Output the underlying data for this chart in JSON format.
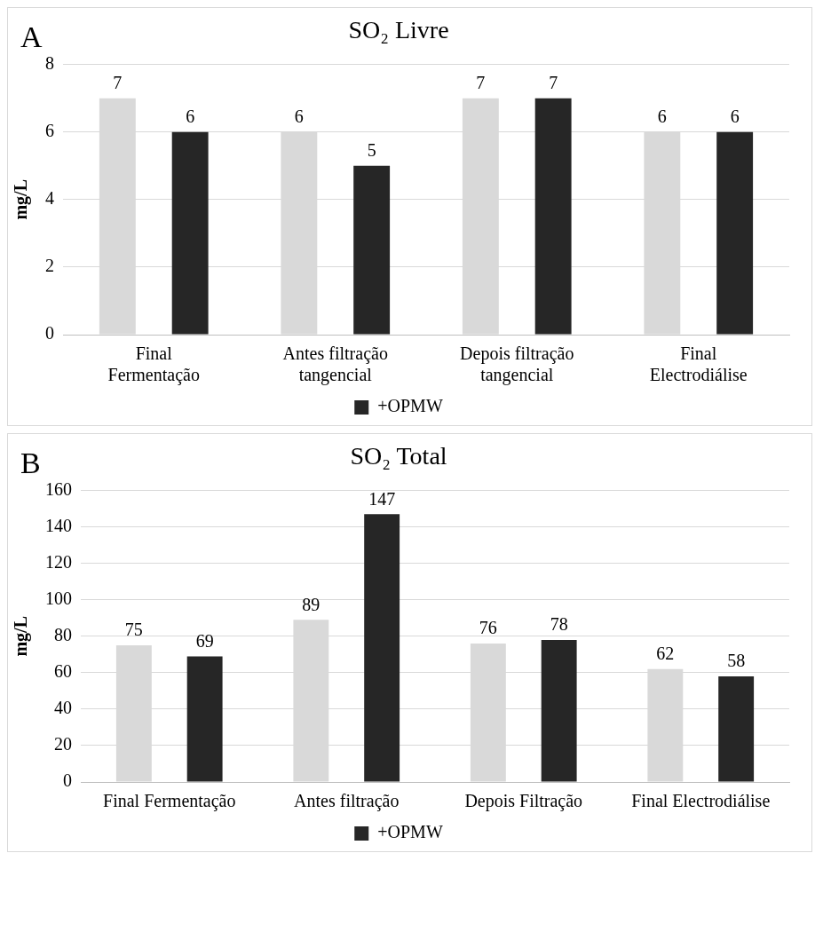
{
  "chart_data": [
    {
      "type": "bar",
      "title": "SO₂ Livre",
      "ylabel": "mg/L",
      "annotations": [
        "A"
      ],
      "categories": [
        "Final Fermentação",
        "Antes filtração tangencial",
        "Depois filtração tangencial",
        "Final Electrodiálise"
      ],
      "series": [
        {
          "color": "#d9d9d9",
          "values": [
            7,
            6,
            7,
            6
          ]
        },
        {
          "name": "+OPMW",
          "color": "#262626",
          "values": [
            6,
            5,
            7,
            6
          ]
        }
      ],
      "ylim": [
        0,
        8
      ],
      "yticks": [
        0,
        2,
        4,
        6,
        8
      ],
      "grid": "y",
      "legend": "bottom",
      "data_labels": true
    },
    {
      "type": "bar",
      "title": "SO₂ Total",
      "ylabel": "mg/L",
      "annotations": [
        "B"
      ],
      "categories": [
        "Final Fermentação",
        "Antes filtração",
        "Depois Filtração",
        "Final Electrodiálise"
      ],
      "series": [
        {
          "color": "#d9d9d9",
          "values": [
            75,
            89,
            76,
            62
          ]
        },
        {
          "name": "+OPMW",
          "color": "#262626",
          "values": [
            69,
            147,
            78,
            58
          ]
        }
      ],
      "ylim": [
        0,
        160
      ],
      "yticks": [
        0,
        20,
        40,
        60,
        80,
        100,
        120,
        140,
        160
      ],
      "grid": "y",
      "legend": "bottom",
      "data_labels": true
    }
  ]
}
